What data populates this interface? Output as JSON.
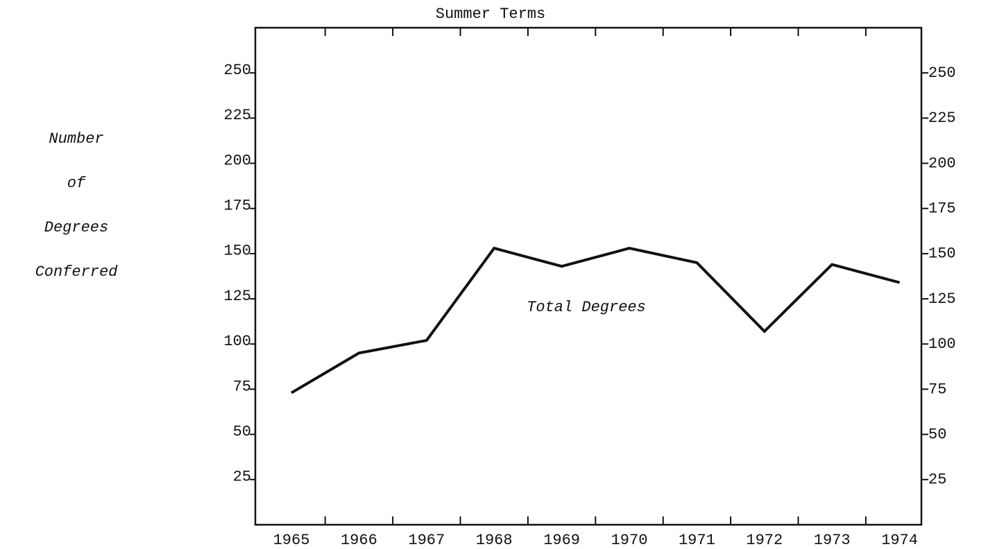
{
  "chart_data": {
    "type": "line",
    "title": "Summer Terms",
    "ylabel": [
      "Number",
      "of",
      "Degrees",
      "Conferred"
    ],
    "annotation": "Total Degrees",
    "categories": [
      "1965",
      "1966",
      "1967",
      "1968",
      "1969",
      "1970",
      "1971",
      "1972",
      "1973",
      "1974"
    ],
    "values": [
      73,
      95,
      102,
      153,
      143,
      153,
      145,
      107,
      144,
      134
    ],
    "color": "#111111",
    "ylim": [
      0,
      275
    ],
    "yticks": [
      25,
      50,
      75,
      100,
      125,
      150,
      175,
      200,
      225,
      250
    ],
    "grid": false
  }
}
